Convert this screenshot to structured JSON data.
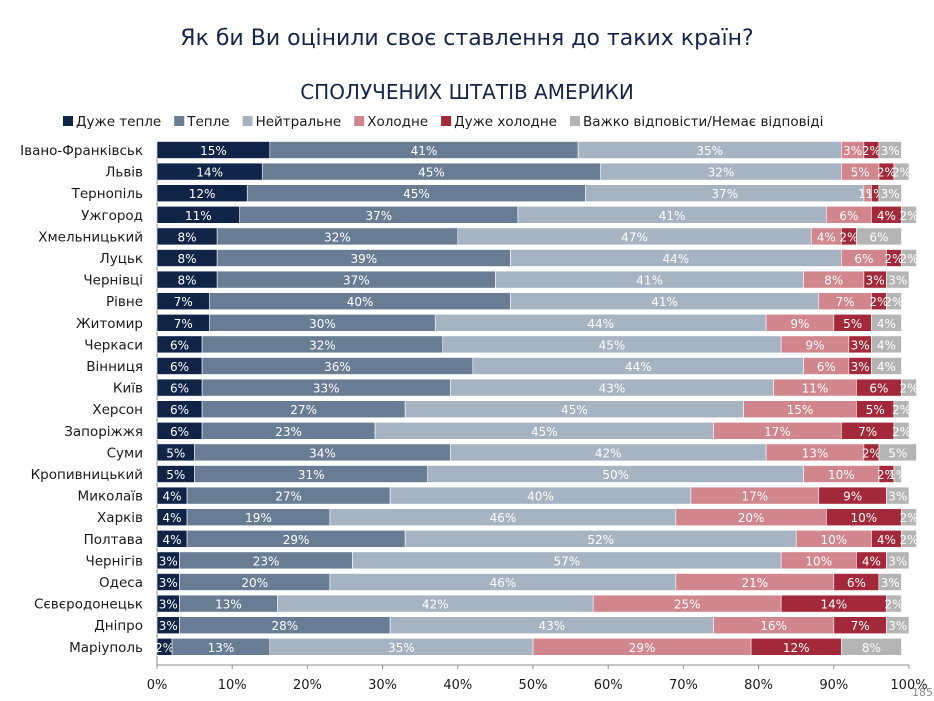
{
  "page_title": "Як би Ви оцінили своє ставлення до таких країн?",
  "slide_number": "185",
  "colors": {
    "Дуже тепле": "#0f2446",
    "Тепле": "#687d94",
    "Нейтральне": "#a6b3c2",
    "Холодне": "#d1858d",
    "Дуже холодне": "#a3293a",
    "Важко відповісти/Немає відповіді": "#b4b4b4"
  },
  "chart_data": {
    "type": "bar",
    "orientation": "horizontal",
    "stacked": true,
    "title": "СПОЛУЧЕНИХ ШТАТІВ АМЕРИКИ",
    "legend_position": "top",
    "xlim": [
      0,
      100
    ],
    "x_ticks": [
      "0%",
      "10%",
      "20%",
      "30%",
      "40%",
      "50%",
      "60%",
      "70%",
      "80%",
      "90%",
      "100%"
    ],
    "categories": [
      "Івано-Франківськ",
      "Львів",
      "Тернопіль",
      "Ужгород",
      "Хмельницький",
      "Луцьк",
      "Чернівці",
      "Рівне",
      "Житомир",
      "Черкаси",
      "Вінниця",
      "Київ",
      "Херсон",
      "Запоріжжя",
      "Суми",
      "Кропивницький",
      "Миколаїв",
      "Харків",
      "Полтава",
      "Чернігів",
      "Одеса",
      "Сєвєродонецьк",
      "Дніпро",
      "Маріуполь"
    ],
    "series": [
      {
        "name": "Дуже тепле",
        "values": [
          15,
          14,
          12,
          11,
          8,
          8,
          8,
          7,
          7,
          6,
          6,
          6,
          6,
          6,
          5,
          5,
          4,
          4,
          4,
          3,
          3,
          3,
          3,
          2
        ]
      },
      {
        "name": "Тепле",
        "values": [
          41,
          45,
          45,
          37,
          32,
          39,
          37,
          40,
          30,
          32,
          36,
          33,
          27,
          23,
          34,
          31,
          27,
          19,
          29,
          23,
          20,
          13,
          28,
          13
        ]
      },
      {
        "name": "Нейтральне",
        "values": [
          35,
          32,
          37,
          41,
          47,
          44,
          41,
          41,
          44,
          45,
          44,
          43,
          45,
          45,
          42,
          50,
          40,
          46,
          52,
          57,
          46,
          42,
          43,
          35
        ]
      },
      {
        "name": "Холодне",
        "values": [
          3,
          5,
          1,
          6,
          4,
          6,
          8,
          7,
          9,
          9,
          6,
          11,
          15,
          17,
          13,
          10,
          17,
          20,
          10,
          10,
          21,
          25,
          16,
          29
        ]
      },
      {
        "name": "Дуже холодне",
        "values": [
          2,
          2,
          1,
          4,
          2,
          2,
          3,
          2,
          5,
          3,
          3,
          6,
          5,
          7,
          2,
          2,
          9,
          10,
          4,
          4,
          6,
          14,
          7,
          12
        ]
      },
      {
        "name": "Важко відповісти/Немає відповіді",
        "values": [
          3,
          2,
          3,
          2,
          6,
          2,
          3,
          2,
          4,
          4,
          4,
          2,
          2,
          2,
          5,
          1,
          3,
          2,
          2,
          3,
          3,
          2,
          3,
          8
        ]
      }
    ],
    "label_suffix": "%"
  }
}
